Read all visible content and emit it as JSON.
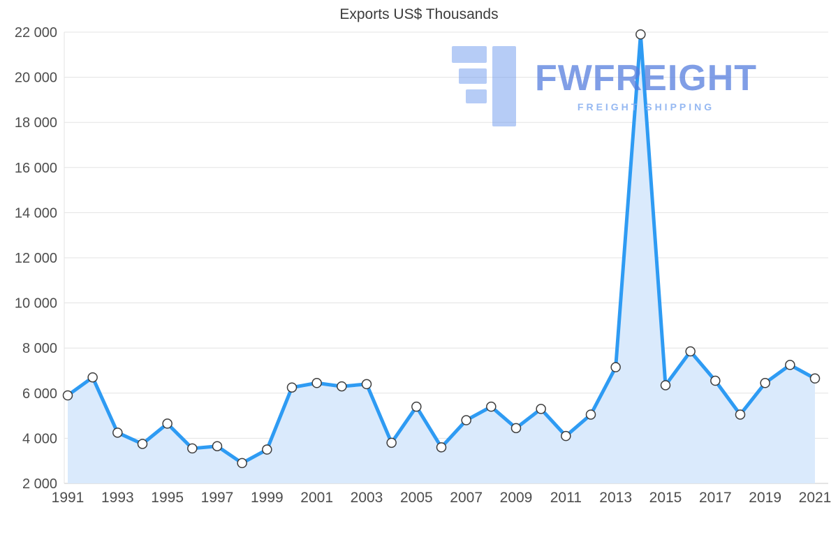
{
  "watermark": {
    "brand": "FWFREIGHT",
    "tagline": "FREIGHT SHIPPING",
    "logo_color": "#6f9bef"
  },
  "chart_data": {
    "type": "area",
    "title": "Exports US$ Thousands",
    "xlabel": "",
    "ylabel": "",
    "x": [
      1991,
      1992,
      1993,
      1994,
      1995,
      1996,
      1997,
      1998,
      1999,
      2000,
      2001,
      2002,
      2003,
      2004,
      2005,
      2006,
      2007,
      2008,
      2009,
      2010,
      2011,
      2012,
      2013,
      2014,
      2015,
      2016,
      2017,
      2018,
      2019,
      2020,
      2021
    ],
    "values": [
      5900,
      6700,
      4250,
      3750,
      4650,
      3550,
      3650,
      2900,
      3500,
      6250,
      6450,
      6300,
      6400,
      3800,
      5400,
      3600,
      4800,
      5400,
      4450,
      5300,
      4100,
      5050,
      7150,
      21900,
      6350,
      7850,
      6550,
      5050,
      6450,
      7250,
      6650
    ],
    "ylim": [
      2000,
      22000
    ],
    "ytick_step": 2000,
    "xtick_step": 2,
    "grid": true,
    "legend": "none",
    "colors": {
      "line": "#2e9bf3",
      "fill": "#daeafc",
      "marker_fill": "#ffffff",
      "marker_stroke": "#3d3d3d",
      "grid": "#e3e3e3",
      "axis": "#c9c9c9",
      "label": "#4d4d4d"
    }
  }
}
